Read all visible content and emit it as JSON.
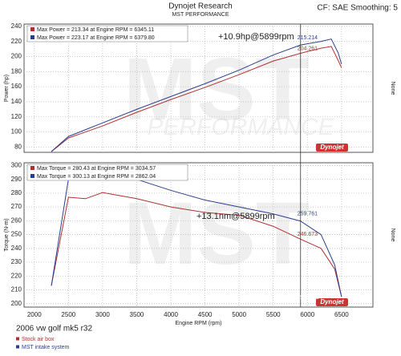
{
  "header": {
    "title": "Dynojet Research",
    "subtitle": "MST PERFORMANCE",
    "settings": "CF: SAE Smoothing: 5"
  },
  "watermark": {
    "logo": "MST",
    "tagline": "PERFORMANCE",
    "brand": "Dynojet"
  },
  "chart_data": [
    {
      "type": "line",
      "ylabel": "Power (hp)",
      "y2label": "None",
      "x": [
        2250,
        2500,
        2750,
        3000,
        3500,
        4000,
        4500,
        5000,
        5500,
        5899.804,
        6200,
        6350,
        6450,
        6500
      ],
      "series": [
        {
          "name": "Stock air box",
          "color": "#b03030",
          "values": [
            74,
            92,
            100,
            108,
            126,
            143,
            159,
            176,
            194,
            204.261,
            211,
            213.34,
            195,
            185
          ]
        },
        {
          "name": "MST intake system",
          "color": "#2a3d8f",
          "values": [
            74,
            94,
            103,
            112,
            130,
            147,
            164,
            182,
            202,
            215.214,
            220,
            223.17,
            205,
            190
          ]
        }
      ],
      "legend": [
        "Max Power = 213.34 at Engine RPM = 6345.11",
        "Max Power = 223.17 at Engine RPM = 6379.80"
      ],
      "gain": "+10.9hp@5899rpm",
      "point_labels": [
        {
          "x": 5899.804,
          "y": 215.214,
          "series": 1
        },
        {
          "x": 5899.804,
          "y": 204.261,
          "series": 0
        }
      ],
      "xlim": [
        1850,
        6960
      ],
      "ylim": [
        73,
        243
      ],
      "xticks": [
        2000,
        2500,
        3000,
        3500,
        4000,
        4500,
        5000,
        5500,
        6000,
        6500
      ],
      "yticks": [
        80,
        100,
        120,
        140,
        160,
        180,
        200,
        220,
        240
      ],
      "grid": true
    },
    {
      "type": "line",
      "ylabel": "Torque (N-m)",
      "y2label": "None",
      "xlabel": "Engine RPM (rpm)",
      "x": [
        2250,
        2500,
        2750,
        3000,
        3500,
        4000,
        4500,
        5000,
        5500,
        5899.804,
        6200,
        6400,
        6500
      ],
      "series": [
        {
          "name": "Stock air box",
          "color": "#b03030",
          "values": [
            213,
            277,
            276,
            280.43,
            276,
            270,
            266,
            264,
            256,
            246.673,
            240,
            225,
            205
          ]
        },
        {
          "name": "MST intake system",
          "color": "#2a3d8f",
          "values": [
            213,
            290,
            299,
            300.13,
            290,
            282,
            275,
            270,
            265,
            259.761,
            250,
            228,
            205
          ]
        }
      ],
      "legend": [
        "Max Torque = 280.43 at Engine RPM = 3034.57",
        "Max Torque = 300.13 at Engine RPM = 2862.04"
      ],
      "gain": "+13.1nm@5899rpm",
      "point_labels": [
        {
          "x": 5899.804,
          "y": 259.761,
          "series": 1
        },
        {
          "x": 5899.804,
          "y": 246.673,
          "series": 0
        }
      ],
      "cursor": 5899.804,
      "xlim": [
        1850,
        6960
      ],
      "ylim": [
        197.5,
        302
      ],
      "xticks": [
        2000,
        2500,
        3000,
        3500,
        4000,
        4500,
        5000,
        5500,
        6000,
        6500
      ],
      "yticks": [
        200,
        210,
        220,
        230,
        240,
        250,
        260,
        270,
        280,
        290,
        300
      ],
      "grid": true
    }
  ],
  "footer": {
    "vehicle": "2006 vw golf mk5 r32"
  }
}
